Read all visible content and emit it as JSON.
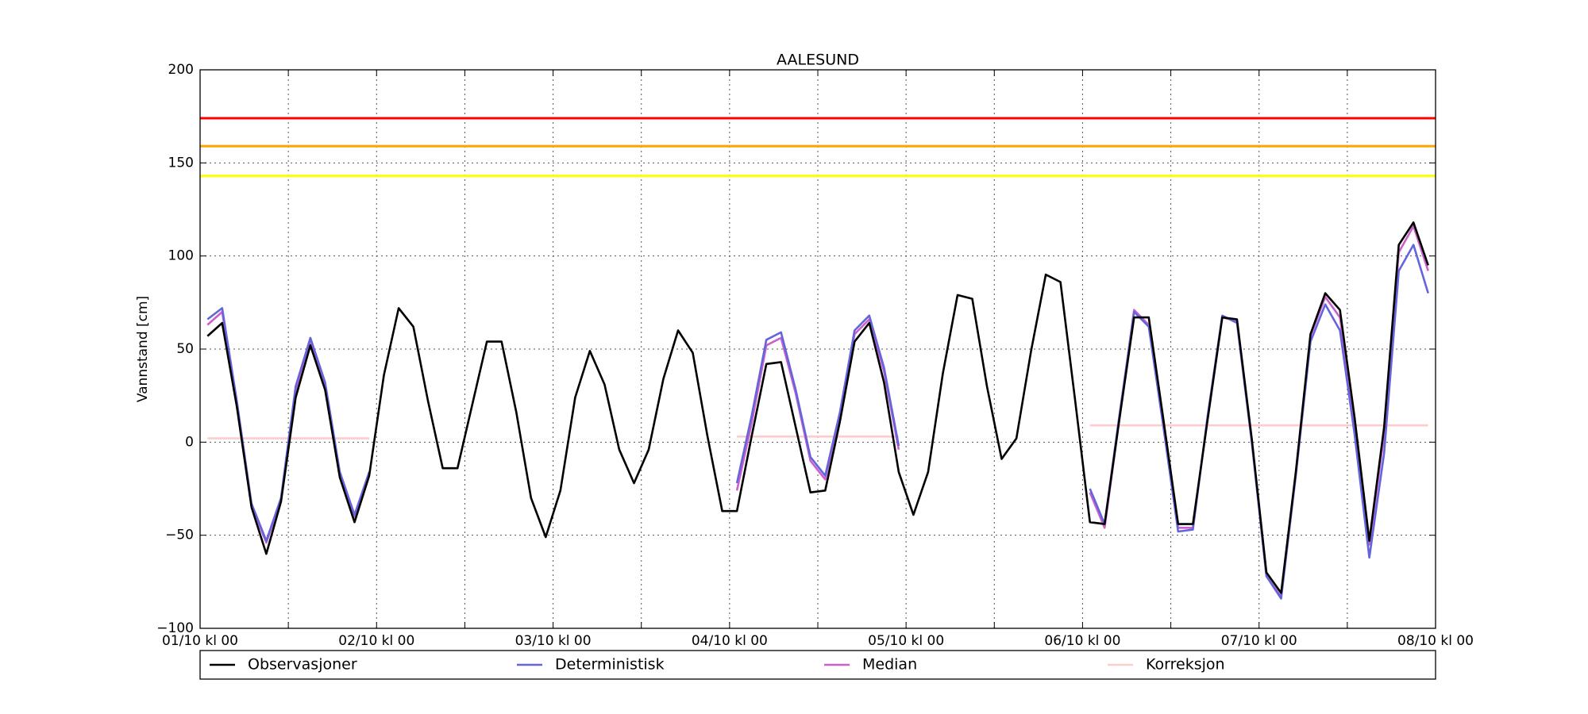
{
  "chart_data": {
    "type": "line",
    "title": "AALESUND",
    "y_label": "Vannstand [cm]",
    "xlim": [
      0,
      168
    ],
    "ylim": [
      -100,
      200
    ],
    "xticks": [
      {
        "value": 0,
        "label": "01/10 kl 00"
      },
      {
        "value": 12,
        "label": null
      },
      {
        "value": 24,
        "label": "02/10 kl 00"
      },
      {
        "value": 36,
        "label": null
      },
      {
        "value": 48,
        "label": "03/10 kl 00"
      },
      {
        "value": 60,
        "label": null
      },
      {
        "value": 72,
        "label": "04/10 kl 00"
      },
      {
        "value": 84,
        "label": null
      },
      {
        "value": 96,
        "label": "05/10 kl 00"
      },
      {
        "value": 108,
        "label": null
      },
      {
        "value": 120,
        "label": "06/10 kl 00"
      },
      {
        "value": 132,
        "label": null
      },
      {
        "value": 144,
        "label": "07/10 kl 00"
      },
      {
        "value": 156,
        "label": null
      },
      {
        "value": 168,
        "label": "08/10 kl 00"
      }
    ],
    "yticks": [
      {
        "value": -100,
        "label": "−100"
      },
      {
        "value": -50,
        "label": "−50"
      },
      0,
      50,
      100,
      150,
      200
    ],
    "grid": true,
    "legend": "bottom",
    "reference_lines": [
      {
        "value": 174,
        "color": "#ff0000"
      },
      {
        "value": 159,
        "color": "#ffa500"
      },
      {
        "value": 143,
        "color": "#ffff00"
      }
    ],
    "x": [
      1,
      3,
      5,
      7,
      9,
      11,
      13,
      15,
      17,
      19,
      21,
      23,
      25,
      27,
      29,
      31,
      33,
      35,
      37,
      39,
      41,
      43,
      45,
      47,
      49,
      51,
      53,
      55,
      57,
      59,
      61,
      63,
      65,
      67,
      69,
      71,
      73,
      75,
      77,
      79,
      81,
      83,
      85,
      87,
      89,
      91,
      93,
      95,
      97,
      99,
      101,
      103,
      105,
      107,
      109,
      111,
      113,
      115,
      117,
      119,
      121,
      123,
      125,
      127,
      129,
      131,
      133,
      135,
      137,
      139,
      141,
      143,
      145,
      147,
      149,
      151,
      153,
      155,
      157,
      159,
      161,
      163,
      165,
      167
    ],
    "series": [
      {
        "name": "Observasjoner",
        "color": "#000000",
        "values": [
          57,
          64,
          19,
          -35,
          -60,
          -32,
          24,
          52,
          28,
          -19,
          -43,
          -18,
          36,
          72,
          62,
          22,
          -14,
          -14,
          20,
          54,
          54,
          16,
          -30,
          -51,
          -26,
          24,
          49,
          31,
          -4,
          -22,
          -4,
          34,
          60,
          48,
          3,
          -37,
          -37,
          3,
          42,
          43,
          8,
          -27,
          -26,
          11,
          54,
          64,
          32,
          -16,
          -39,
          -16,
          37,
          79,
          77,
          30,
          -9,
          2,
          49,
          90,
          86,
          22,
          -43,
          -44,
          12,
          67,
          67,
          12,
          -44,
          -44,
          12,
          67,
          66,
          2,
          -70,
          -81,
          -16,
          58,
          80,
          71,
          13,
          -53,
          8,
          106,
          118,
          95
        ]
      },
      {
        "name": "Deterministisk",
        "color": "#6464dc",
        "values": [
          66,
          72,
          22,
          -33,
          -53,
          -30,
          30,
          56,
          32,
          -16,
          -39,
          -16,
          null,
          null,
          null,
          null,
          null,
          null,
          null,
          null,
          null,
          null,
          null,
          null,
          null,
          null,
          null,
          null,
          null,
          null,
          null,
          null,
          null,
          null,
          null,
          null,
          -22,
          14,
          55,
          59,
          28,
          -8,
          -18,
          16,
          60,
          68,
          40,
          -2,
          null,
          null,
          null,
          null,
          null,
          null,
          null,
          null,
          null,
          null,
          null,
          null,
          -25,
          -44,
          14,
          70,
          62,
          8,
          -48,
          -47,
          14,
          68,
          64,
          0,
          -72,
          -84,
          -18,
          54,
          74,
          60,
          4,
          -62,
          -6,
          92,
          106,
          80
        ]
      },
      {
        "name": "Median",
        "color": "#cc5fcc",
        "values": [
          63,
          70,
          20,
          -34,
          -54,
          -31,
          28,
          54,
          30,
          -17,
          -40,
          -17,
          null,
          null,
          null,
          null,
          null,
          null,
          null,
          null,
          null,
          null,
          null,
          null,
          null,
          null,
          null,
          null,
          null,
          null,
          null,
          null,
          null,
          null,
          null,
          null,
          -26,
          10,
          52,
          56,
          26,
          -10,
          -20,
          14,
          58,
          66,
          38,
          -4,
          null,
          null,
          null,
          null,
          null,
          null,
          null,
          null,
          null,
          null,
          null,
          null,
          -27,
          -46,
          12,
          71,
          63,
          10,
          -46,
          -46,
          13,
          67,
          65,
          1,
          -72,
          -83,
          -17,
          57,
          78,
          67,
          8,
          -55,
          4,
          102,
          116,
          92
        ]
      },
      {
        "name": "Korreksjon",
        "color": "#ffcccc",
        "values": [
          2,
          2,
          2,
          2,
          2,
          2,
          2,
          2,
          2,
          2,
          2,
          2,
          null,
          null,
          null,
          null,
          null,
          null,
          null,
          null,
          null,
          null,
          null,
          null,
          null,
          null,
          null,
          null,
          null,
          null,
          null,
          null,
          null,
          null,
          null,
          null,
          3,
          3,
          3,
          3,
          3,
          3,
          3,
          3,
          3,
          3,
          3,
          3,
          null,
          null,
          null,
          null,
          null,
          null,
          null,
          null,
          null,
          null,
          null,
          null,
          9,
          9,
          9,
          9,
          9,
          9,
          9,
          9,
          9,
          9,
          9,
          9,
          9,
          9,
          9,
          9,
          9,
          9,
          9,
          9,
          9,
          9,
          9,
          9
        ]
      }
    ]
  }
}
